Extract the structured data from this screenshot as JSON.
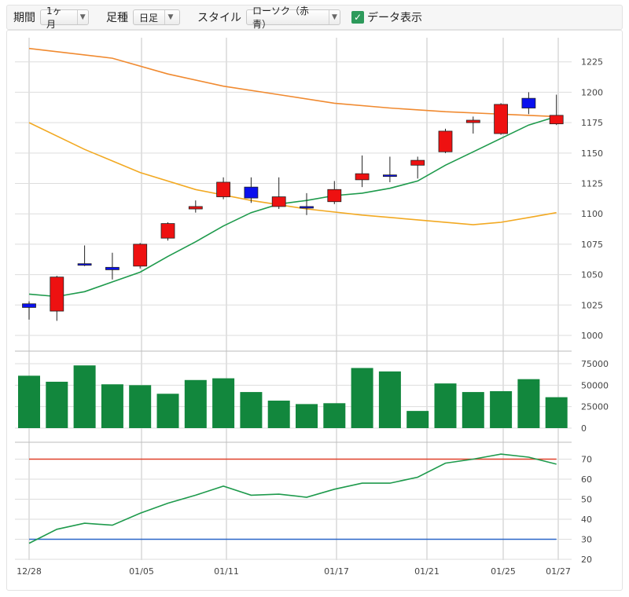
{
  "toolbar": {
    "period_label": "期間",
    "period_value": "1ヶ月",
    "interval_label": "足種",
    "interval_value": "日足",
    "style_label": "スタイル",
    "style_value": "ローソク（赤青）",
    "show_data_label": "データ表示",
    "show_data_checked": true
  },
  "colors": {
    "up_candle": "#ee1111",
    "down_candle": "#0a10ee",
    "volume_bar": "#12873d",
    "ma_short": "#1e9a4c",
    "ma_long1": "#f08a30",
    "ma_long2": "#f2a922",
    "osc_line": "#1e9a4c",
    "upper_band": "#e0402a",
    "lower_band": "#2a66c8",
    "grid": "#cccccc"
  },
  "chart_data": [
    {
      "type": "candlestick",
      "name": "price",
      "x_ticks": [
        "12/28",
        "01/05",
        "01/11",
        "01/17",
        "01/21",
        "01/25",
        "01/27"
      ],
      "y_ticks": [
        1000,
        1025,
        1050,
        1075,
        1100,
        1125,
        1150,
        1175,
        1200,
        1225
      ],
      "ylim": [
        995,
        1245
      ],
      "candles": [
        {
          "o": 1026,
          "h": 1028,
          "l": 1013,
          "c": 1023
        },
        {
          "o": 1020,
          "h": 1049,
          "l": 1012,
          "c": 1048
        },
        {
          "o": 1059,
          "h": 1074,
          "l": 1057,
          "c": 1058
        },
        {
          "o": 1056,
          "h": 1068,
          "l": 1046,
          "c": 1054
        },
        {
          "o": 1057,
          "h": 1076,
          "l": 1055,
          "c": 1075
        },
        {
          "o": 1080,
          "h": 1093,
          "l": 1078,
          "c": 1092
        },
        {
          "o": 1104,
          "h": 1111,
          "l": 1101,
          "c": 1106
        },
        {
          "o": 1114,
          "h": 1130,
          "l": 1112,
          "c": 1126
        },
        {
          "o": 1122,
          "h": 1130,
          "l": 1109,
          "c": 1113
        },
        {
          "o": 1106,
          "h": 1130,
          "l": 1104,
          "c": 1114
        },
        {
          "o": 1106,
          "h": 1117,
          "l": 1099,
          "c": 1105
        },
        {
          "o": 1110,
          "h": 1127,
          "l": 1108,
          "c": 1120
        },
        {
          "o": 1128,
          "h": 1148,
          "l": 1122,
          "c": 1133
        },
        {
          "o": 1132,
          "h": 1147,
          "l": 1126,
          "c": 1131
        },
        {
          "o": 1140,
          "h": 1147,
          "l": 1129,
          "c": 1144
        },
        {
          "o": 1151,
          "h": 1170,
          "l": 1150,
          "c": 1168
        },
        {
          "o": 1175,
          "h": 1180,
          "l": 1166,
          "c": 1177
        },
        {
          "o": 1166,
          "h": 1191,
          "l": 1165,
          "c": 1190
        },
        {
          "o": 1195,
          "h": 1200,
          "l": 1182,
          "c": 1187
        },
        {
          "o": 1174,
          "h": 1198,
          "l": 1173,
          "c": 1181
        }
      ],
      "ma_short": [
        1034,
        1032,
        1036,
        1044,
        1052,
        1065,
        1077,
        1090,
        1101,
        1108,
        1111,
        1115,
        1117,
        1121,
        1127,
        1140,
        1151,
        1162,
        1173,
        1180
      ],
      "ma_long1": {
        "x": [
          0,
          3,
          5,
          7,
          9,
          11,
          13,
          15,
          17,
          19
        ],
        "y": [
          1236,
          1228,
          1215,
          1205,
          1198,
          1191,
          1187,
          1184,
          1182,
          1180
        ]
      },
      "ma_long2": {
        "x": [
          0,
          2,
          4,
          6,
          8,
          10,
          12,
          14,
          16,
          17,
          18,
          19
        ],
        "y": [
          1175,
          1153,
          1134,
          1120,
          1111,
          1104,
          1099,
          1095,
          1091,
          1093,
          1097,
          1101
        ]
      }
    },
    {
      "type": "bar",
      "name": "volume",
      "y_ticks": [
        0,
        25000,
        50000,
        75000
      ],
      "ylim": [
        0,
        82000
      ],
      "values": [
        61000,
        54000,
        73000,
        51000,
        50000,
        40000,
        56000,
        58000,
        42000,
        32000,
        28000,
        29000,
        70000,
        66000,
        20000,
        52000,
        42000,
        43000,
        57000,
        36000
      ]
    },
    {
      "type": "line",
      "name": "oscillator",
      "y_ticks": [
        20,
        30,
        40,
        50,
        60,
        70
      ],
      "ylim": [
        18,
        76
      ],
      "upper_band": 70,
      "lower_band": 30,
      "values": [
        28,
        35,
        38,
        37,
        43,
        48,
        52,
        56.5,
        52,
        52.5,
        51,
        55,
        58,
        58,
        61,
        68,
        70,
        72.5,
        71,
        67.5
      ]
    }
  ]
}
